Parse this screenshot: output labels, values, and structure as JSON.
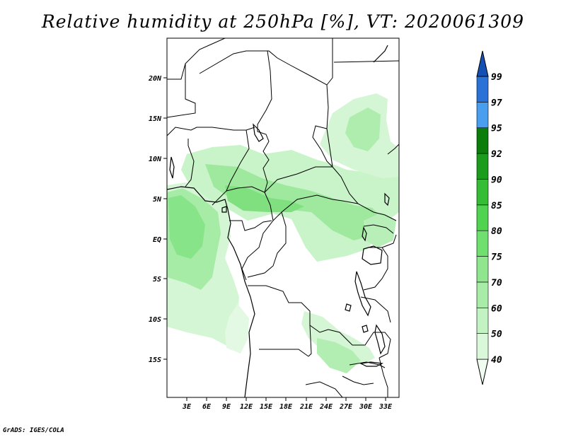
{
  "title": "Relative humidity at 250hPa [%], VT: 2020061309",
  "credit": "GrADS: IGES/COLA",
  "map": {
    "lon_range": [
      0,
      35
    ],
    "lat_range": [
      -19,
      25
    ],
    "lon_ticks": [
      "3E",
      "6E",
      "9E",
      "12E",
      "15E",
      "18E",
      "21E",
      "24E",
      "27E",
      "30E",
      "33E"
    ],
    "lat_ticks": [
      "20N",
      "15N",
      "10N",
      "5N",
      "EQ",
      "5S",
      "10S",
      "15S"
    ]
  },
  "colorbar": {
    "levels": [
      "40",
      "50",
      "60",
      "70",
      "75",
      "80",
      "85",
      "90",
      "92",
      "95",
      "97",
      "99"
    ],
    "colors": [
      "#f0fcf0",
      "#d9f7d9",
      "#c3f2c3",
      "#a9eca9",
      "#8fe68f",
      "#6fdf6f",
      "#50d350",
      "#35bd35",
      "#1c9c1c",
      "#0a7d0a",
      "#4a9ef0",
      "#2a72d8",
      "#1450b4"
    ]
  }
}
